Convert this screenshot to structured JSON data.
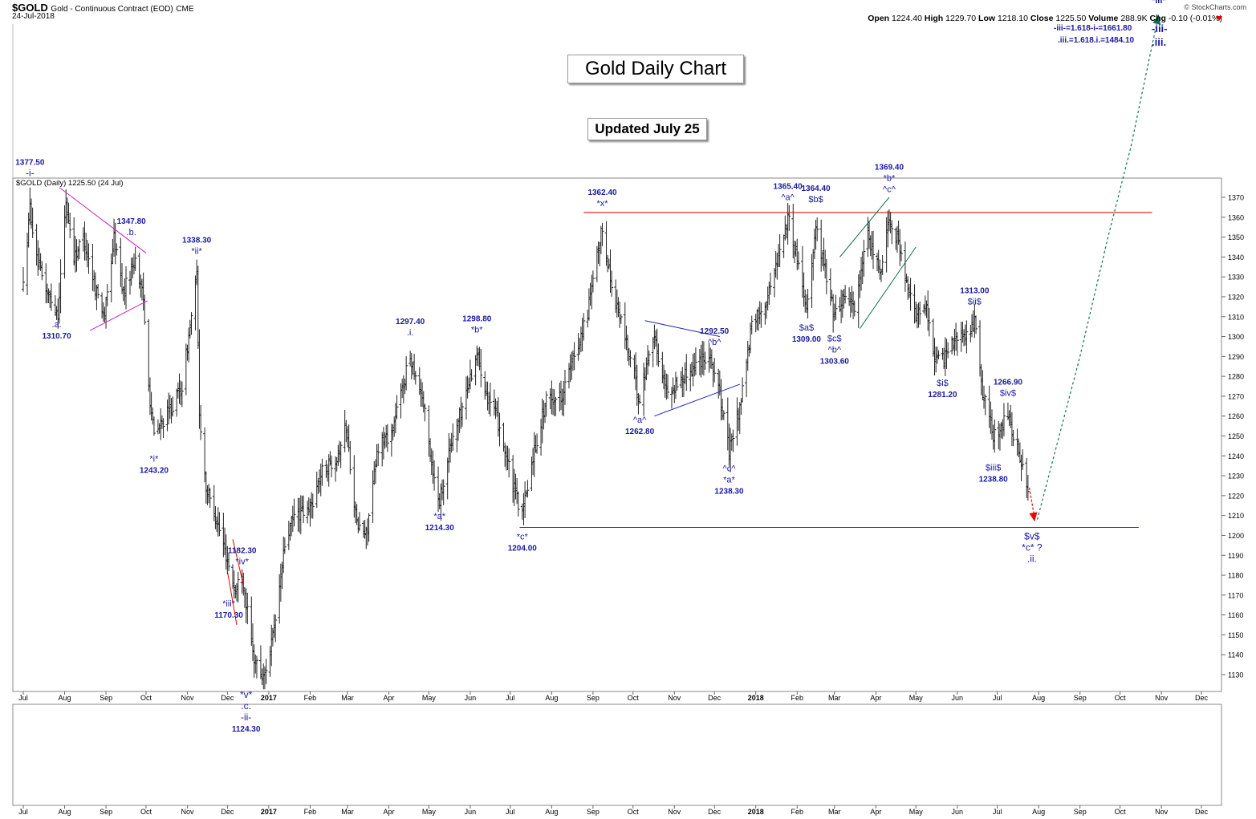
{
  "header": {
    "ticker": "$GOLD",
    "description": "Gold - Continuous Contract (EOD)",
    "exchange": "CME",
    "date": "24-Jul-2018",
    "credit": "© StockCharts.com",
    "open_label": "Open",
    "open": "1224.40",
    "high_label": "High",
    "high": "1229.70",
    "low_label": "Low",
    "low": "1218.10",
    "close_label": "Close",
    "close": "1225.50",
    "volume_label": "Volume",
    "volume": "288.9K",
    "chg_label": "Chg",
    "chg": "-0.10 (-0.01%)"
  },
  "legend": "$GOLD (Daily) 1225.50 (24 Jul)",
  "title_box": "Gold Daily Chart",
  "update_box": "Updated July 25",
  "targets": {
    "t1": "-iii-=1.618-i-=1661.80",
    "t2": ".iii.=1.618.i.=1484.10",
    "w1": "-iii-",
    "w2": ".iii."
  },
  "colors": {
    "label_blue": "#1a1aa0",
    "resistance": "#cc0000",
    "trend_magenta": "#d020c0",
    "trend_blue": "#2020c0",
    "channel_green": "#107050",
    "projection_green": "#107050",
    "projection_red": "#ee0000",
    "bars": "#222222"
  },
  "chart_data": {
    "type": "ohlc",
    "y_axis_ticks": [
      1130,
      1140,
      1150,
      1160,
      1170,
      1180,
      1190,
      1200,
      1210,
      1220,
      1230,
      1240,
      1250,
      1260,
      1270,
      1280,
      1290,
      1300,
      1310,
      1320,
      1330,
      1340,
      1350,
      1360,
      1370
    ],
    "ylim": [
      1122,
      1380
    ],
    "x_axis_labels": [
      "Jul",
      "Aug",
      "Sep",
      "Oct",
      "Nov",
      "Dec",
      "2017",
      "Feb",
      "Mar",
      "Apr",
      "May",
      "Jun",
      "Jul",
      "Aug",
      "Sep",
      "Oct",
      "Nov",
      "Dec",
      "2018",
      "Feb",
      "Mar",
      "Apr",
      "May",
      "Jun",
      "Jul",
      "Aug",
      "Sep",
      "Oct",
      "Nov",
      "Dec"
    ],
    "x_axis_dates": [
      "2016-07",
      "2016-08",
      "2016-09",
      "2016-10",
      "2016-11",
      "2016-12",
      "2017-01",
      "2017-02",
      "2017-03",
      "2017-04",
      "2017-05",
      "2017-06",
      "2017-07",
      "2017-08",
      "2017-09",
      "2017-10",
      "2017-11",
      "2017-12",
      "2018-01",
      "2018-02",
      "2018-03",
      "2018-04",
      "2018-05",
      "2018-06",
      "2018-07",
      "2018-08",
      "2018-09",
      "2018-10",
      "2018-11",
      "2018-12"
    ],
    "price_path": [
      [
        "2016-07-01",
        1325
      ],
      [
        "2016-07-06",
        1365
      ],
      [
        "2016-07-11",
        1338
      ],
      [
        "2016-07-19",
        1322
      ],
      [
        "2016-07-27",
        1312
      ],
      [
        "2016-08-02",
        1368
      ],
      [
        "2016-08-08",
        1340
      ],
      [
        "2016-08-15",
        1350
      ],
      [
        "2016-08-24",
        1325
      ],
      [
        "2016-08-31",
        1310
      ],
      [
        "2016-09-07",
        1350
      ],
      [
        "2016-09-14",
        1322
      ],
      [
        "2016-09-23",
        1340
      ],
      [
        "2016-09-29",
        1318
      ],
      [
        "2016-10-04",
        1268
      ],
      [
        "2016-10-07",
        1250
      ],
      [
        "2016-10-14",
        1258
      ],
      [
        "2016-10-21",
        1265
      ],
      [
        "2016-10-28",
        1275
      ],
      [
        "2016-11-03",
        1305
      ],
      [
        "2016-11-08",
        1330
      ],
      [
        "2016-11-10",
        1262
      ],
      [
        "2016-11-15",
        1224
      ],
      [
        "2016-11-22",
        1210
      ],
      [
        "2016-11-30",
        1190
      ],
      [
        "2016-12-07",
        1172
      ],
      [
        "2016-12-12",
        1182
      ],
      [
        "2016-12-20",
        1140
      ],
      [
        "2016-12-28",
        1128
      ],
      [
        "2017-01-05",
        1152
      ],
      [
        "2017-01-13",
        1195
      ],
      [
        "2017-01-20",
        1210
      ],
      [
        "2017-01-31",
        1212
      ],
      [
        "2017-02-10",
        1232
      ],
      [
        "2017-02-21",
        1240
      ],
      [
        "2017-02-28",
        1255
      ],
      [
        "2017-03-08",
        1205
      ],
      [
        "2017-03-15",
        1200
      ],
      [
        "2017-03-24",
        1245
      ],
      [
        "2017-04-03",
        1252
      ],
      [
        "2017-04-17",
        1290
      ],
      [
        "2017-04-26",
        1270
      ],
      [
        "2017-05-05",
        1228
      ],
      [
        "2017-05-09",
        1218
      ],
      [
        "2017-05-17",
        1245
      ],
      [
        "2017-05-25",
        1262
      ],
      [
        "2017-06-06",
        1292
      ],
      [
        "2017-06-14",
        1270
      ],
      [
        "2017-06-23",
        1255
      ],
      [
        "2017-07-03",
        1225
      ],
      [
        "2017-07-10",
        1210
      ],
      [
        "2017-07-18",
        1240
      ],
      [
        "2017-07-28",
        1268
      ],
      [
        "2017-08-08",
        1270
      ],
      [
        "2017-08-18",
        1290
      ],
      [
        "2017-08-28",
        1312
      ],
      [
        "2017-09-08",
        1355
      ],
      [
        "2017-09-15",
        1325
      ],
      [
        "2017-09-25",
        1300
      ],
      [
        "2017-10-06",
        1268
      ],
      [
        "2017-10-16",
        1302
      ],
      [
        "2017-10-26",
        1272
      ],
      [
        "2017-11-06",
        1278
      ],
      [
        "2017-11-15",
        1285
      ],
      [
        "2017-11-27",
        1292
      ],
      [
        "2017-12-04",
        1275
      ],
      [
        "2017-12-12",
        1242
      ],
      [
        "2017-12-20",
        1265
      ],
      [
        "2017-12-29",
        1305
      ],
      [
        "2018-01-10",
        1320
      ],
      [
        "2018-01-25",
        1360
      ],
      [
        "2018-02-01",
        1340
      ],
      [
        "2018-02-08",
        1315
      ],
      [
        "2018-02-15",
        1355
      ],
      [
        "2018-02-23",
        1330
      ],
      [
        "2018-03-01",
        1310
      ],
      [
        "2018-03-09",
        1322
      ],
      [
        "2018-03-16",
        1315
      ],
      [
        "2018-03-26",
        1350
      ],
      [
        "2018-04-04",
        1332
      ],
      [
        "2018-04-11",
        1360
      ],
      [
        "2018-04-18",
        1348
      ],
      [
        "2018-04-25",
        1322
      ],
      [
        "2018-05-02",
        1310
      ],
      [
        "2018-05-09",
        1315
      ],
      [
        "2018-05-15",
        1290
      ],
      [
        "2018-05-21",
        1288
      ],
      [
        "2018-05-30",
        1300
      ],
      [
        "2018-06-08",
        1300
      ],
      [
        "2018-06-14",
        1308
      ],
      [
        "2018-06-19",
        1275
      ],
      [
        "2018-06-28",
        1250
      ],
      [
        "2018-07-05",
        1256
      ],
      [
        "2018-07-09",
        1262
      ],
      [
        "2018-07-17",
        1240
      ],
      [
        "2018-07-24",
        1225
      ]
    ],
    "last_bar": {
      "date": "2018-07-24",
      "open": 1224.4,
      "high": 1229.7,
      "low": 1218.1,
      "close": 1225.5
    },
    "annotations": [
      {
        "date": "2016-07-06",
        "price": 1377.5,
        "labels": [
          "1377.50",
          "-i-"
        ],
        "pos": "above",
        "big": true
      },
      {
        "date": "2016-07-26",
        "price": 1310.7,
        "labels": [
          ".a.",
          "1310.70"
        ],
        "pos": "below"
      },
      {
        "date": "2016-09-20",
        "price": 1347.8,
        "labels": [
          "1347.80",
          ".b."
        ],
        "pos": "above"
      },
      {
        "date": "2016-10-07",
        "price": 1243.2,
        "labels": [
          "*i*",
          "1243.20"
        ],
        "pos": "below"
      },
      {
        "date": "2016-11-08",
        "price": 1338.3,
        "labels": [
          "1338.30",
          "*ii*"
        ],
        "pos": "above"
      },
      {
        "date": "2016-12-02",
        "price": 1170.3,
        "labels": [
          "*iii*",
          "1170.30"
        ],
        "pos": "below"
      },
      {
        "date": "2016-12-12",
        "price": 1182.3,
        "labels": [
          "1182.30",
          "*iv*"
        ],
        "pos": "above"
      },
      {
        "date": "2016-12-15",
        "price": 1124.3,
        "labels": [
          "*v*",
          ".c.",
          "-ii-",
          "1124.30"
        ],
        "pos": "below",
        "big": true
      },
      {
        "date": "2017-04-17",
        "price": 1297.4,
        "labels": [
          "1297.40",
          ".i."
        ],
        "pos": "above"
      },
      {
        "date": "2017-05-09",
        "price": 1214.3,
        "labels": [
          "*a*",
          "1214.30"
        ],
        "pos": "below"
      },
      {
        "date": "2017-06-06",
        "price": 1298.8,
        "labels": [
          "1298.80",
          "*b*"
        ],
        "pos": "above"
      },
      {
        "date": "2017-07-10",
        "price": 1204.0,
        "labels": [
          "*c*",
          "1204.00"
        ],
        "pos": "below"
      },
      {
        "date": "2017-09-08",
        "price": 1362.4,
        "labels": [
          "1362.40",
          "*x*"
        ],
        "pos": "above"
      },
      {
        "date": "2017-10-06",
        "price": 1262.8,
        "labels": [
          "^a^",
          "1262.80"
        ],
        "pos": "below"
      },
      {
        "date": "2017-12-01",
        "price": 1292.5,
        "labels": [
          "1292.50",
          "^b^"
        ],
        "pos": "above"
      },
      {
        "date": "2017-12-12",
        "price": 1238.3,
        "labels": [
          "^c^",
          "*a*",
          "1238.30"
        ],
        "pos": "below"
      },
      {
        "date": "2018-01-25",
        "price": 1365.4,
        "labels": [
          "1365.40",
          "^a^"
        ],
        "pos": "above"
      },
      {
        "date": "2018-02-08",
        "price": 1309.0,
        "labels": [
          "$a$",
          "1309.00"
        ],
        "pos": "below"
      },
      {
        "date": "2018-02-15",
        "price": 1364.4,
        "labels": [
          "1364.40",
          "$b$"
        ],
        "pos": "above"
      },
      {
        "date": "2018-03-01",
        "price": 1303.6,
        "labels": [
          "$c$",
          "^b^",
          "1303.60"
        ],
        "pos": "below"
      },
      {
        "date": "2018-04-11",
        "price": 1369.4,
        "labels": [
          "1369.40",
          "*b*",
          "^c^"
        ],
        "pos": "above"
      },
      {
        "date": "2018-05-21",
        "price": 1281.2,
        "labels": [
          "$i$",
          "1281.20"
        ],
        "pos": "below"
      },
      {
        "date": "2018-06-14",
        "price": 1313.0,
        "labels": [
          "1313.00",
          "$ii$"
        ],
        "pos": "above"
      },
      {
        "date": "2018-06-28",
        "price": 1238.8,
        "labels": [
          "$iii$",
          "1238.80"
        ],
        "pos": "below"
      },
      {
        "date": "2018-07-09",
        "price": 1266.9,
        "labels": [
          "1266.90",
          "$iv$"
        ],
        "pos": "above"
      },
      {
        "date": "2018-07-27",
        "price": 1204,
        "labels": [
          "$v$",
          "*c* ?",
          ".ii."
        ],
        "pos": "below",
        "big": true
      }
    ],
    "horizontal_lines": [
      {
        "from": "2017-08-25",
        "to": "2018-10-25",
        "price": 1362.4
      },
      {
        "from": "2017-07-08",
        "to": "2018-10-15",
        "price": 1204.0
      }
    ],
    "trendlines": [
      {
        "color": "magenta",
        "points": [
          [
            "2016-07-28",
            1375
          ],
          [
            "2016-10-01",
            1342
          ]
        ]
      },
      {
        "color": "magenta",
        "points": [
          [
            "2016-08-20",
            1303
          ],
          [
            "2016-10-02",
            1318
          ]
        ]
      },
      {
        "color": "blue",
        "points": [
          [
            "2017-10-10",
            1308
          ],
          [
            "2017-12-05",
            1300
          ]
        ]
      },
      {
        "color": "blue",
        "points": [
          [
            "2017-10-17",
            1260
          ],
          [
            "2017-12-20",
            1276
          ]
        ]
      },
      {
        "color": "green",
        "points": [
          [
            "2018-03-05",
            1340
          ],
          [
            "2018-04-11",
            1370
          ]
        ]
      },
      {
        "color": "green",
        "points": [
          [
            "2018-03-20",
            1304
          ],
          [
            "2018-05-01",
            1345
          ]
        ]
      },
      {
        "color": "red",
        "points": [
          [
            "2016-12-01",
            1182
          ],
          [
            "2016-12-08",
            1155
          ]
        ]
      },
      {
        "color": "red",
        "points": [
          [
            "2016-12-05",
            1198
          ],
          [
            "2016-12-13",
            1175
          ]
        ]
      }
    ],
    "projection": [
      [
        "2018-07-31",
        1208
      ],
      [
        "2018-09-01",
        1290
      ],
      [
        "2018-09-22",
        1350
      ],
      [
        "2018-10-09",
        1395
      ],
      [
        "2018-10-23",
        1440
      ],
      [
        "2018-10-30",
        1462
      ]
    ],
    "projection_label": "*iii*",
    "down_arrow": [
      [
        "2018-07-25",
        1224
      ],
      [
        "2018-07-29",
        1207
      ]
    ]
  }
}
